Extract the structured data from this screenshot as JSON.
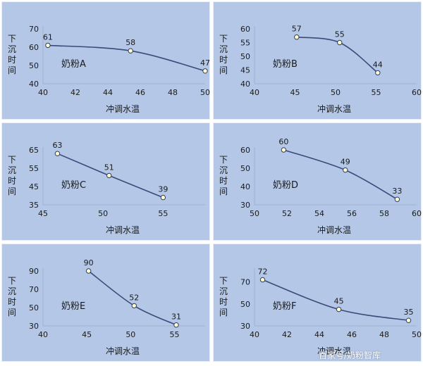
{
  "chart_data": [
    {
      "type": "line",
      "x": [
        40.3,
        45.4,
        50
      ],
      "values": [
        61,
        58,
        47
      ],
      "data_labels": [
        "61",
        "58",
        "47"
      ],
      "xlim": [
        40,
        50
      ],
      "xticks": [
        40,
        42,
        44,
        46,
        48,
        50
      ],
      "ylim": [
        40,
        70
      ],
      "yticks": [
        40,
        50,
        60,
        70
      ],
      "xlabel": "冲调水温",
      "ylabel": "下沉时间",
      "annotation": "奶粉A",
      "smooth": true
    },
    {
      "type": "line",
      "x": [
        45.2,
        50.5,
        55.2
      ],
      "values": [
        57,
        55,
        44
      ],
      "data_labels": [
        "57",
        "55",
        "44"
      ],
      "xlim": [
        40,
        60
      ],
      "xticks": [
        40,
        45,
        50,
        55,
        60
      ],
      "ylim": [
        40,
        60
      ],
      "yticks": [
        40,
        45,
        50,
        55,
        60
      ],
      "xlabel": "冲调水温",
      "ylabel": "下沉时间",
      "annotation": "奶粉B",
      "smooth": true
    },
    {
      "type": "line",
      "x": [
        46.2,
        50.5,
        55
      ],
      "values": [
        63,
        51,
        39
      ],
      "data_labels": [
        "63",
        "51",
        "39"
      ],
      "xlim": [
        45,
        58.5
      ],
      "xticks": [
        45,
        50,
        55
      ],
      "ylim": [
        35,
        65
      ],
      "yticks": [
        35,
        45,
        55,
        65
      ],
      "xlabel": "冲调水温",
      "ylabel": "下沉时间",
      "annotation": "奶粉C",
      "smooth": false
    },
    {
      "type": "line",
      "x": [
        51.8,
        55.6,
        58.8
      ],
      "values": [
        60,
        49,
        33
      ],
      "data_labels": [
        "60",
        "49",
        "33"
      ],
      "xlim": [
        50,
        60
      ],
      "xticks": [
        50,
        52,
        54,
        56,
        58,
        60
      ],
      "ylim": [
        30,
        60
      ],
      "yticks": [
        30,
        40,
        50,
        60
      ],
      "xlabel": "冲调水温",
      "ylabel": "下沉时间",
      "annotation": "奶粉D",
      "smooth": true
    },
    {
      "type": "line",
      "x": [
        45.2,
        50.4,
        55.2
      ],
      "values": [
        90,
        52,
        31
      ],
      "data_labels": [
        "90",
        "52",
        "31"
      ],
      "xlim": [
        40,
        58.5
      ],
      "xticks": [
        40,
        45,
        50,
        55
      ],
      "ylim": [
        30,
        90
      ],
      "yticks": [
        30,
        50,
        70,
        90
      ],
      "xlabel": "冲调水温",
      "ylabel": "下沉时间",
      "annotation": "奶粉E",
      "smooth": true
    },
    {
      "type": "line",
      "x": [
        40.5,
        45.2,
        49.5
      ],
      "values": [
        72,
        45,
        35
      ],
      "data_labels": [
        "72",
        "45",
        "35"
      ],
      "xlim": [
        40,
        50
      ],
      "xticks": [
        40,
        42,
        44,
        46,
        48,
        50
      ],
      "ylim": [
        30,
        80
      ],
      "yticks": [
        30,
        50,
        70
      ],
      "xlabel": "冲调水温",
      "ylabel": "下沉时间",
      "annotation": "奶粉F",
      "smooth": true
    }
  ],
  "watermark": "百家号/奶粉智库",
  "colors": {
    "panel_bg": "#b4c7e7",
    "line": "#3b4a7a",
    "marker_fill": "#ffffcc",
    "marker_stroke": "#2f3b66",
    "text": "#1a1a1a"
  }
}
